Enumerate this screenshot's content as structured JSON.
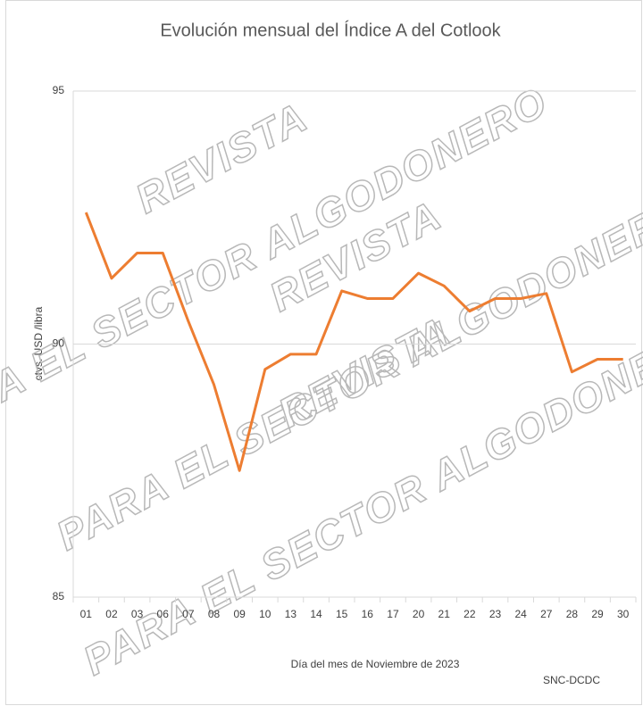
{
  "chart_data": {
    "type": "line",
    "title": "Evolución mensual  del Índice A del Cotlook",
    "y_axis_label": "ctvs. USD /libra",
    "x_axis_label": "Día del mes de Noviembre  de 2023",
    "source": "SNC-DCDC",
    "watermark": [
      "REVISTA",
      "PARA EL SECTOR ALGODONERO"
    ],
    "categories": [
      "01",
      "02",
      "03",
      "06",
      "07",
      "08",
      "09",
      "10",
      "13",
      "14",
      "15",
      "16",
      "17",
      "20",
      "21",
      "22",
      "23",
      "24",
      "27",
      "28",
      "29",
      "30"
    ],
    "series": [
      {
        "name": "Índice A",
        "color": "#ed7d31",
        "values": [
          92.6,
          91.3,
          91.8,
          91.8,
          90.45,
          89.2,
          87.5,
          89.5,
          89.8,
          89.8,
          91.05,
          90.9,
          90.9,
          91.4,
          91.15,
          90.65,
          90.9,
          90.9,
          91.0,
          89.45,
          89.7,
          89.7
        ]
      }
    ],
    "ylim": [
      85,
      95
    ],
    "yticks": [
      85,
      90,
      95
    ],
    "grid": true
  }
}
